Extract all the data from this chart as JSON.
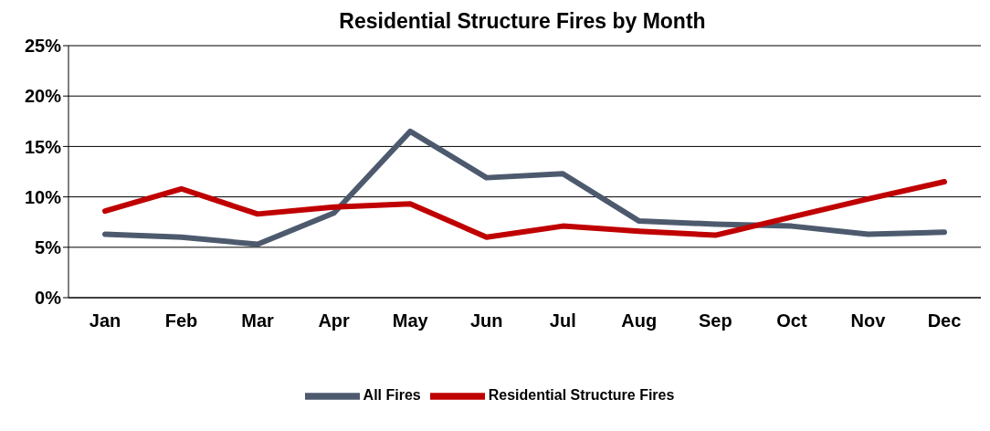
{
  "chart_data": {
    "type": "line",
    "title": "Residential Structure Fires by Month",
    "categories": [
      "Jan",
      "Feb",
      "Mar",
      "Apr",
      "May",
      "Jun",
      "Jul",
      "Aug",
      "Sep",
      "Oct",
      "Nov",
      "Dec"
    ],
    "series": [
      {
        "name": "All Fires",
        "color": "#4d5a6e",
        "values": [
          6.3,
          6.0,
          5.3,
          8.4,
          16.5,
          11.9,
          12.3,
          7.6,
          7.3,
          7.1,
          6.3,
          6.5
        ]
      },
      {
        "name": "Residential Structure Fires",
        "color": "#c00000",
        "values": [
          8.6,
          10.8,
          8.3,
          9.0,
          9.3,
          6.0,
          7.1,
          6.6,
          6.2,
          8.0,
          9.8,
          11.5
        ]
      }
    ],
    "ylim": [
      0,
      25
    ],
    "yticks": [
      {
        "value": 0,
        "label": "0%"
      },
      {
        "value": 5,
        "label": "5%"
      },
      {
        "value": 10,
        "label": "10%"
      },
      {
        "value": 15,
        "label": "15%"
      },
      {
        "value": 20,
        "label": "20%"
      },
      {
        "value": 25,
        "label": "25%"
      }
    ],
    "grid": "y",
    "legend": "bottom",
    "marker": "none",
    "line_style": "solid"
  }
}
